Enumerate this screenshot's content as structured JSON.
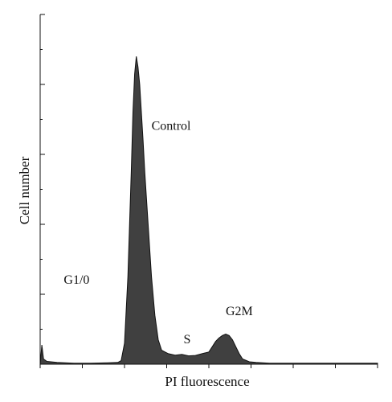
{
  "chart_data": {
    "type": "area",
    "xlabel": "PI fluorescence",
    "ylabel": "Cell number",
    "xlim": [
      0,
      100
    ],
    "ylim": [
      0,
      100
    ],
    "grid": false,
    "x_ticks": [
      0,
      12.5,
      25,
      37.5,
      50,
      62.5,
      75,
      87.5,
      100
    ],
    "y_ticks": [
      0,
      10,
      20,
      30,
      40,
      50,
      60,
      70,
      80,
      90,
      100
    ],
    "series": [
      {
        "x": [
          0,
          0.5,
          1,
          2,
          5,
          10,
          15,
          20,
          23,
          24,
          25,
          26,
          27,
          27.5,
          28,
          28.5,
          29,
          29.5,
          30,
          30.5,
          31,
          32,
          33,
          34,
          35,
          36,
          37,
          38,
          40,
          42,
          44,
          46,
          48,
          50,
          51,
          52,
          53,
          54,
          55,
          56,
          57,
          58,
          59,
          60,
          62,
          64,
          66,
          68,
          70,
          75,
          80,
          85,
          90,
          95,
          100
        ],
        "y": [
          0,
          5.5,
          1.5,
          0.8,
          0.5,
          0.3,
          0.3,
          0.4,
          0.5,
          1,
          6,
          25,
          55,
          72,
          83,
          88,
          85,
          80,
          72,
          64,
          55,
          40,
          25,
          14,
          7,
          4,
          3.5,
          3,
          2.6,
          2.8,
          2.4,
          2.5,
          3,
          3.5,
          5,
          6.5,
          7.5,
          8.2,
          8.6,
          8.2,
          7,
          5,
          3,
          1.5,
          0.7,
          0.5,
          0.4,
          0.3,
          0.3,
          0.3,
          0.3,
          0.3,
          0.3,
          0.3,
          0.3
        ],
        "color": "#404040"
      }
    ],
    "annotations": [
      {
        "text": "Control",
        "x": 33,
        "y": 67
      },
      {
        "text": "G1/0",
        "x": 7,
        "y": 23
      },
      {
        "text": "S",
        "x": 42.5,
        "y": 6
      },
      {
        "text": "G2M",
        "x": 55,
        "y": 14
      }
    ]
  }
}
